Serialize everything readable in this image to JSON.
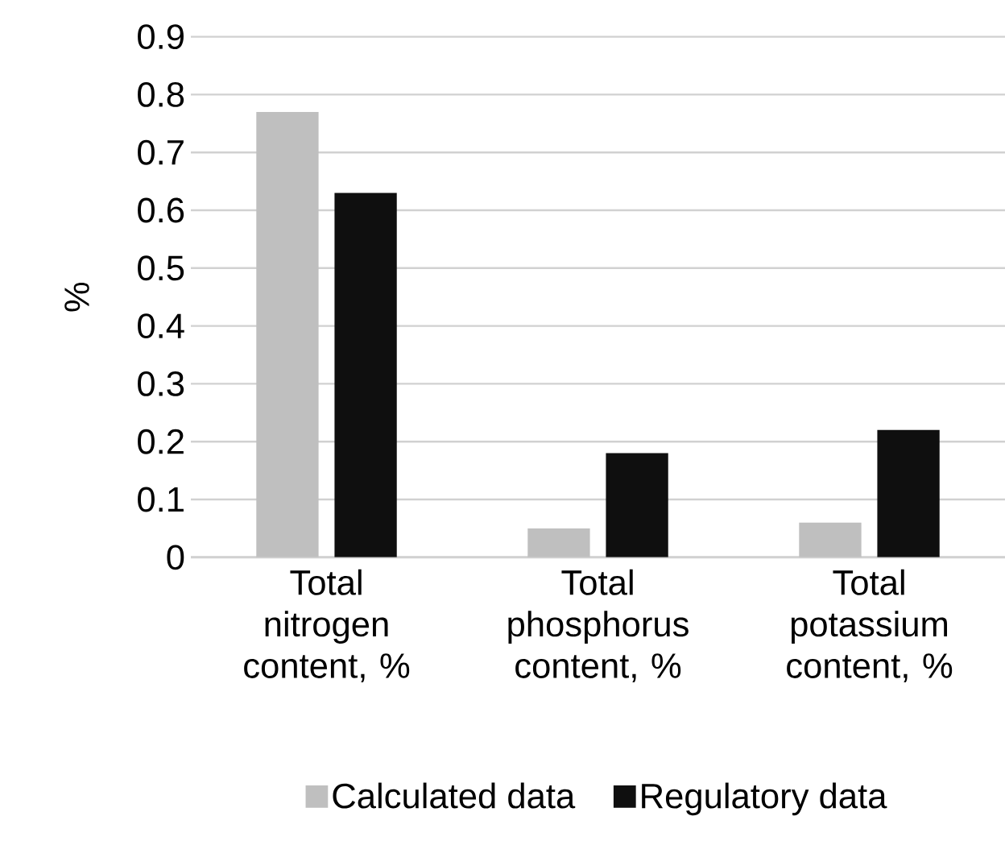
{
  "chart_data": {
    "type": "bar",
    "ylabel": "%",
    "categories": [
      "Total nitrogen content, %",
      "Total phosphorus content, %",
      "Total potassium content, %"
    ],
    "series": [
      {
        "name": "Calculated data",
        "color": "#bfbfbf",
        "values": [
          0.77,
          0.05,
          0.06
        ]
      },
      {
        "name": "Regulatory data",
        "color": "#0f0f0f",
        "values": [
          0.63,
          0.18,
          0.22
        ]
      }
    ],
    "ylim": [
      0,
      0.9
    ],
    "yticks": [
      0,
      0.1,
      0.2,
      0.3,
      0.4,
      0.5,
      0.6,
      0.7,
      0.8,
      0.9
    ],
    "grid": "y",
    "legend": "bottom"
  }
}
